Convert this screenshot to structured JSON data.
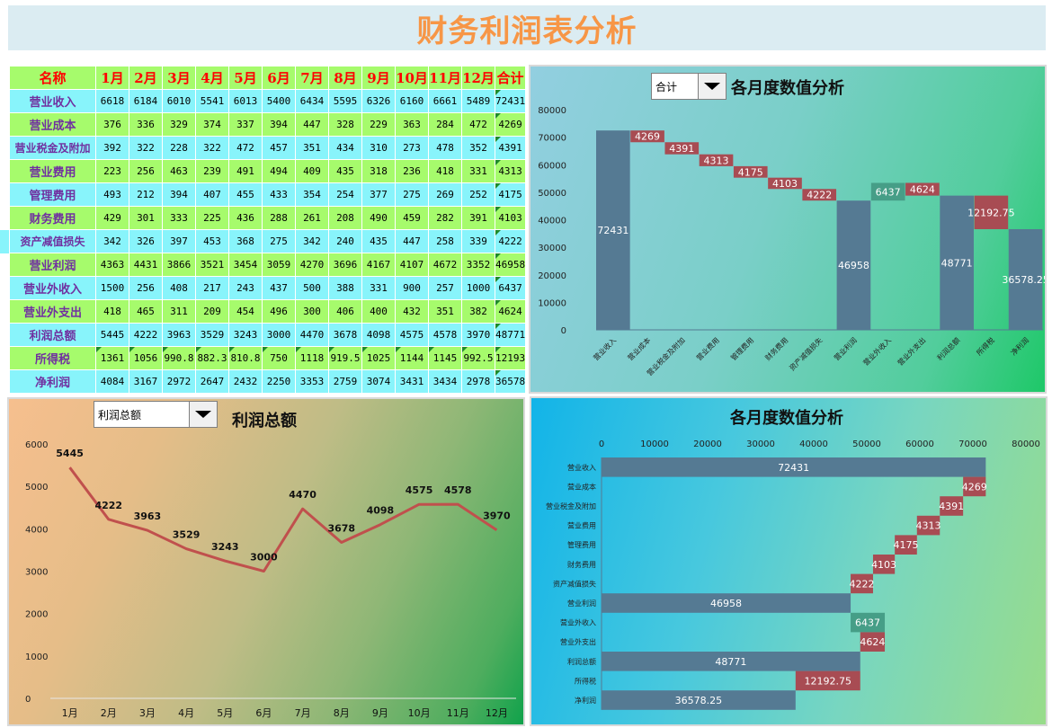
{
  "title": "财务利润表分析",
  "table": {
    "headers": [
      "名称",
      "1月",
      "2月",
      "3月",
      "4月",
      "5月",
      "6月",
      "7月",
      "8月",
      "9月",
      "10月",
      "11月",
      "12月",
      "合计"
    ],
    "rows": [
      {
        "name": "营业收入",
        "values": [
          "6618",
          "6184",
          "6010",
          "5541",
          "6013",
          "5400",
          "6434",
          "5595",
          "6326",
          "6160",
          "6661",
          "5489"
        ],
        "total": "72431"
      },
      {
        "name": "营业成本",
        "values": [
          "376",
          "336",
          "329",
          "374",
          "337",
          "394",
          "447",
          "328",
          "229",
          "363",
          "284",
          "472"
        ],
        "total": "4269"
      },
      {
        "name": "营业税金及附加",
        "values": [
          "392",
          "322",
          "228",
          "322",
          "472",
          "457",
          "351",
          "434",
          "310",
          "273",
          "478",
          "352"
        ],
        "total": "4391"
      },
      {
        "name": "营业费用",
        "values": [
          "223",
          "256",
          "463",
          "239",
          "491",
          "494",
          "409",
          "435",
          "318",
          "236",
          "418",
          "331"
        ],
        "total": "4313"
      },
      {
        "name": "管理费用",
        "values": [
          "493",
          "212",
          "394",
          "407",
          "455",
          "433",
          "354",
          "254",
          "377",
          "275",
          "269",
          "252"
        ],
        "total": "4175"
      },
      {
        "name": "财务费用",
        "values": [
          "429",
          "301",
          "333",
          "225",
          "436",
          "288",
          "261",
          "208",
          "490",
          "459",
          "282",
          "391"
        ],
        "total": "4103"
      },
      {
        "name": "资产减值损失",
        "values": [
          "342",
          "326",
          "397",
          "453",
          "368",
          "275",
          "342",
          "240",
          "435",
          "447",
          "258",
          "339"
        ],
        "total": "4222"
      },
      {
        "name": "营业利润",
        "values": [
          "4363",
          "4431",
          "3866",
          "3521",
          "3454",
          "3059",
          "4270",
          "3696",
          "4167",
          "4107",
          "4672",
          "3352"
        ],
        "total": "46958"
      },
      {
        "name": "营业外收入",
        "values": [
          "1500",
          "256",
          "408",
          "217",
          "243",
          "437",
          "500",
          "388",
          "331",
          "900",
          "257",
          "1000"
        ],
        "total": "6437"
      },
      {
        "name": "营业外支出",
        "values": [
          "418",
          "465",
          "311",
          "209",
          "454",
          "496",
          "300",
          "406",
          "400",
          "432",
          "351",
          "382"
        ],
        "total": "4624"
      },
      {
        "name": "利润总额",
        "values": [
          "5445",
          "4222",
          "3963",
          "3529",
          "3243",
          "3000",
          "4470",
          "3678",
          "4098",
          "4575",
          "4578",
          "3970"
        ],
        "total": "48771"
      },
      {
        "name": "所得税",
        "values": [
          "1361",
          "1056",
          "990.8",
          "882.3",
          "810.8",
          "750",
          "1118",
          "919.5",
          "1025",
          "1144",
          "1145",
          "992.5"
        ],
        "total": "12193"
      },
      {
        "name": "净利润",
        "values": [
          "4084",
          "3167",
          "2972",
          "2647",
          "2432",
          "2250",
          "3353",
          "2759",
          "3074",
          "3431",
          "3434",
          "2978"
        ],
        "total": "36578"
      }
    ]
  },
  "waterfall_panel": {
    "dropdown_value": "合计",
    "title": "各月度数值分析"
  },
  "line_panel": {
    "dropdown_value": "利润总额",
    "title": "利润总额"
  },
  "bar_panel": {
    "title": "各月度数值分析"
  },
  "colors": {
    "total_bar": "#557a93",
    "decrease_bar": "#a84c53",
    "increase_bar": "#469e87",
    "line": "#c0504d",
    "title": "#f79646"
  },
  "chart_data": [
    {
      "type": "bar",
      "subtype": "waterfall-vertical",
      "title": "各月度数值分析",
      "categories": [
        "营业收入",
        "营业成本",
        "营业税金及附加",
        "营业费用",
        "管理费用",
        "财务费用",
        "资产减值损失",
        "营业利润",
        "营业外收入",
        "营业外支出",
        "利润总额",
        "所得税",
        "净利润"
      ],
      "values": [
        72431,
        4269,
        4391,
        4313,
        4175,
        4103,
        4222,
        46958,
        6437,
        4624,
        48771,
        12192.75,
        36578.25
      ],
      "labels": [
        "72431",
        "4269",
        "4391",
        "4313",
        "4175",
        "4103",
        "4222",
        "46958",
        "6437",
        "4624",
        "48771",
        "12192.75",
        "36578.25"
      ],
      "kinds": [
        "total",
        "decrease",
        "decrease",
        "decrease",
        "decrease",
        "decrease",
        "decrease",
        "total",
        "increase",
        "decrease",
        "total",
        "decrease",
        "total"
      ],
      "ylim": [
        0,
        80000
      ],
      "yticks": [
        "0",
        "10000",
        "20000",
        "30000",
        "40000",
        "50000",
        "60000",
        "70000",
        "80000"
      ],
      "grid": false
    },
    {
      "type": "line",
      "title": "利润总额",
      "categories": [
        "1月",
        "2月",
        "3月",
        "4月",
        "5月",
        "6月",
        "7月",
        "8月",
        "9月",
        "10月",
        "11月",
        "12月"
      ],
      "values": [
        5445,
        4222,
        3963,
        3529,
        3243,
        3000,
        4470,
        3678,
        4098,
        4575,
        4578,
        3970
      ],
      "ylim": [
        0,
        6000
      ],
      "yticks": [
        "0",
        "1000",
        "2000",
        "3000",
        "4000",
        "5000",
        "6000"
      ],
      "grid": false
    },
    {
      "type": "bar",
      "subtype": "waterfall-horizontal",
      "title": "各月度数值分析",
      "categories": [
        "营业收入",
        "营业成本",
        "营业税金及附加",
        "营业费用",
        "管理费用",
        "财务费用",
        "资产减值损失",
        "营业利润",
        "营业外收入",
        "营业外支出",
        "利润总额",
        "所得税",
        "净利润"
      ],
      "values": [
        72431,
        4269,
        4391,
        4313,
        4175,
        4103,
        4222,
        46958,
        6437,
        4624,
        48771,
        12192.75,
        36578.25
      ],
      "labels": [
        "72431",
        "4269",
        "4391",
        "4313",
        "4175",
        "4103",
        "4222",
        "46958",
        "6437",
        "4624",
        "48771",
        "12192.75",
        "36578.25"
      ],
      "kinds": [
        "total",
        "decrease",
        "decrease",
        "decrease",
        "decrease",
        "decrease",
        "decrease",
        "total",
        "increase",
        "decrease",
        "total",
        "decrease",
        "total"
      ],
      "xlim": [
        0,
        80000
      ],
      "xticks": [
        "0",
        "10000",
        "20000",
        "30000",
        "40000",
        "50000",
        "60000",
        "70000",
        "80000"
      ],
      "grid": false
    }
  ]
}
